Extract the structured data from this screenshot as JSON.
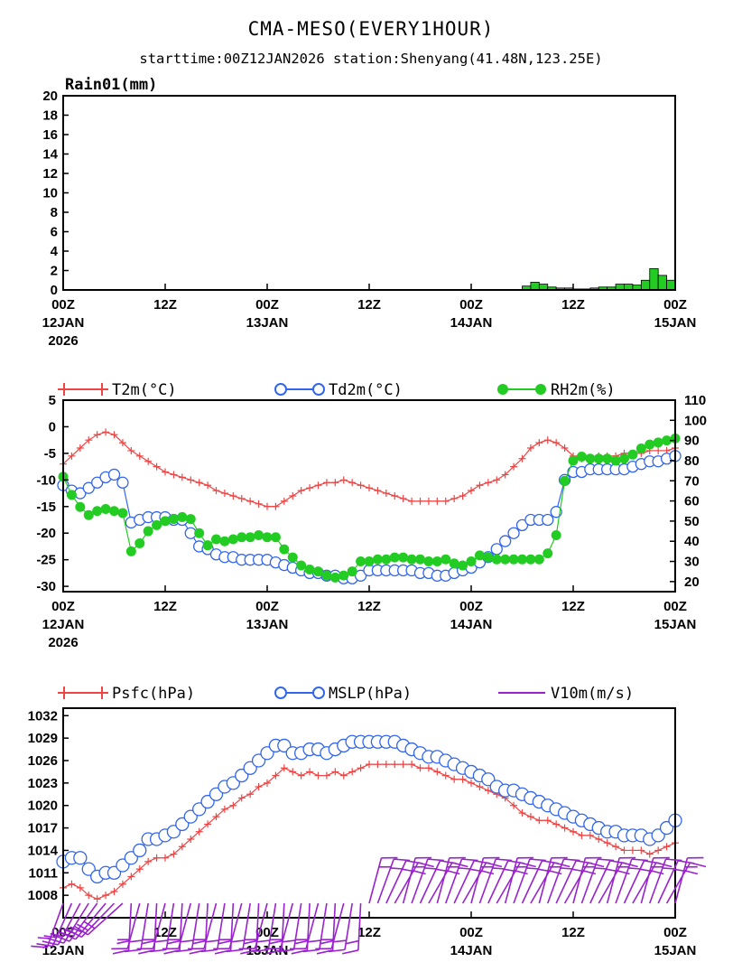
{
  "header": {
    "title": "CMA-MESO(EVERY1HOUR)",
    "subtitle": "starttime:00Z12JAN2026    station:Shenyang(41.48N,123.25E)"
  },
  "colors": {
    "rain": "#22cc22",
    "t2m": "#ee4444",
    "td2m": "#3366ee",
    "rh2m": "#22cc22",
    "psfc": "#ee4444",
    "mslp": "#3366ee",
    "wind": "#9922cc"
  },
  "time_axis": {
    "ticks": [
      {
        "hour": 0,
        "label": "00Z",
        "date": "12JAN",
        "year": "2026"
      },
      {
        "hour": 12,
        "label": "12Z",
        "date": "",
        "year": ""
      },
      {
        "hour": 24,
        "label": "00Z",
        "date": "13JAN",
        "year": ""
      },
      {
        "hour": 36,
        "label": "12Z",
        "date": "",
        "year": ""
      },
      {
        "hour": 48,
        "label": "00Z",
        "date": "14JAN",
        "year": ""
      },
      {
        "hour": 60,
        "label": "12Z",
        "date": "",
        "year": ""
      },
      {
        "hour": 72,
        "label": "00Z",
        "date": "15JAN",
        "year": ""
      }
    ],
    "range": [
      0,
      72
    ]
  },
  "chart_data": [
    {
      "type": "bar",
      "panel": "rain",
      "title": "Rain01(mm)",
      "ylim": [
        0,
        20
      ],
      "yticks": [
        0,
        2,
        4,
        6,
        8,
        10,
        12,
        14,
        16,
        18,
        20
      ],
      "x": [
        55,
        56,
        57,
        58,
        59,
        60,
        61,
        62,
        63,
        64,
        65,
        66,
        67,
        68,
        69,
        70,
        71,
        72
      ],
      "values": [
        0.4,
        0.8,
        0.6,
        0.3,
        0.2,
        0.2,
        0.1,
        0.1,
        0.2,
        0.3,
        0.3,
        0.6,
        0.6,
        0.5,
        1.0,
        2.2,
        1.5,
        1.0
      ]
    },
    {
      "type": "line",
      "panel": "temperature",
      "ylim_left": [
        -31,
        5
      ],
      "yticks_left": [
        5,
        0,
        -5,
        -10,
        -15,
        -20,
        -25,
        -30
      ],
      "ylim_right": [
        15,
        110
      ],
      "yticks_right": [
        110,
        100,
        90,
        80,
        70,
        60,
        50,
        40,
        30,
        20
      ],
      "x": [
        0,
        1,
        2,
        3,
        4,
        5,
        6,
        7,
        8,
        9,
        10,
        11,
        12,
        13,
        14,
        15,
        16,
        17,
        18,
        19,
        20,
        21,
        22,
        23,
        24,
        25,
        26,
        27,
        28,
        29,
        30,
        31,
        32,
        33,
        34,
        35,
        36,
        37,
        38,
        39,
        40,
        41,
        42,
        43,
        44,
        45,
        46,
        47,
        48,
        49,
        50,
        51,
        52,
        53,
        54,
        55,
        56,
        57,
        58,
        59,
        60,
        61,
        62,
        63,
        64,
        65,
        66,
        67,
        68,
        69,
        70,
        71,
        72
      ],
      "series": [
        {
          "name": "T2m(°C)",
          "axis": "left",
          "marker": "plus",
          "values": [
            -7,
            -5.5,
            -4,
            -2.5,
            -1.5,
            -1,
            -1.5,
            -3,
            -4.5,
            -5.5,
            -6.5,
            -7.5,
            -8.5,
            -9,
            -9.5,
            -10,
            -10.5,
            -11,
            -12,
            -12.5,
            -13,
            -13.5,
            -14,
            -14.5,
            -15,
            -15,
            -14,
            -13,
            -12,
            -11.5,
            -11,
            -10.5,
            -10.5,
            -10,
            -10.5,
            -11,
            -11.5,
            -12,
            -12.5,
            -13,
            -13.5,
            -14,
            -14,
            -14,
            -14,
            -14,
            -13.5,
            -13,
            -12,
            -11,
            -10.5,
            -10,
            -9,
            -7.5,
            -6,
            -4,
            -3,
            -2.5,
            -3,
            -4,
            -5.5,
            -6,
            -6,
            -5.5,
            -5.5,
            -5.5,
            -5,
            -5,
            -5,
            -4.5,
            -4.5,
            -4.5,
            -4
          ]
        },
        {
          "name": "Td2m(°C)",
          "axis": "left",
          "marker": "circle",
          "values": [
            -11,
            -12,
            -12.5,
            -11.5,
            -10.5,
            -9.5,
            -9,
            -10.5,
            -18,
            -17.5,
            -17,
            -17,
            -17,
            -17.5,
            -17.5,
            -20,
            -22.5,
            -23,
            -24,
            -24.5,
            -24.5,
            -25,
            -25,
            -25,
            -25,
            -25.5,
            -26,
            -26.5,
            -27,
            -27.5,
            -27.5,
            -28,
            -28,
            -28.5,
            -28.5,
            -28,
            -27,
            -27,
            -27,
            -27,
            -27,
            -27,
            -27.5,
            -27.5,
            -28,
            -28,
            -27.5,
            -27,
            -26.5,
            -25.5,
            -24.5,
            -23,
            -21.5,
            -20,
            -18.5,
            -17.5,
            -17.5,
            -17.5,
            -16,
            -10,
            -8.5,
            -8.5,
            -8,
            -8,
            -8,
            -8,
            -8,
            -7.5,
            -7,
            -6.5,
            -6.5,
            -6,
            -5.5
          ]
        },
        {
          "name": "RH2m(%)",
          "axis": "right",
          "marker": "dot",
          "values": [
            72,
            63,
            57,
            53,
            55,
            56,
            55,
            54,
            35,
            39,
            45,
            48,
            50,
            51,
            52,
            51,
            44,
            38,
            41,
            40,
            41,
            42,
            42,
            43,
            42,
            42,
            36,
            32,
            28,
            26,
            25,
            23,
            22,
            23,
            25,
            30,
            30,
            31,
            31,
            32,
            32,
            31,
            31,
            30,
            30,
            31,
            29,
            28,
            30,
            33,
            32,
            31,
            31,
            31,
            31,
            31,
            31,
            34,
            43,
            70,
            80,
            82,
            81,
            81,
            81,
            80,
            81,
            83,
            86,
            88,
            89,
            90,
            91
          ]
        }
      ]
    },
    {
      "type": "line",
      "panel": "pressure",
      "ylim": [
        1005,
        1033
      ],
      "yticks": [
        1032,
        1029,
        1026,
        1023,
        1020,
        1017,
        1014,
        1011,
        1008
      ],
      "x": [
        0,
        1,
        2,
        3,
        4,
        5,
        6,
        7,
        8,
        9,
        10,
        11,
        12,
        13,
        14,
        15,
        16,
        17,
        18,
        19,
        20,
        21,
        22,
        23,
        24,
        25,
        26,
        27,
        28,
        29,
        30,
        31,
        32,
        33,
        34,
        35,
        36,
        37,
        38,
        39,
        40,
        41,
        42,
        43,
        44,
        45,
        46,
        47,
        48,
        49,
        50,
        51,
        52,
        53,
        54,
        55,
        56,
        57,
        58,
        59,
        60,
        61,
        62,
        63,
        64,
        65,
        66,
        67,
        68,
        69,
        70,
        71,
        72
      ],
      "series": [
        {
          "name": "Psfc(hPa)",
          "marker": "plus",
          "values": [
            1009,
            1009.5,
            1009,
            1008,
            1007.5,
            1008,
            1008.5,
            1009.5,
            1010.5,
            1011.5,
            1012.5,
            1013,
            1013,
            1013.5,
            1014.5,
            1015.5,
            1016.5,
            1017.5,
            1018.5,
            1019.5,
            1020,
            1021,
            1021.5,
            1022.5,
            1023,
            1024,
            1025,
            1024.5,
            1024,
            1024.5,
            1024,
            1024,
            1024.5,
            1024,
            1024.5,
            1025,
            1025.5,
            1025.5,
            1025.5,
            1025.5,
            1025.5,
            1025.5,
            1025,
            1025,
            1024.5,
            1024,
            1023.5,
            1023.5,
            1023,
            1022.5,
            1022,
            1021.5,
            1021,
            1020,
            1019,
            1018.5,
            1018,
            1018,
            1017.5,
            1017,
            1016.5,
            1016,
            1016,
            1015.5,
            1015,
            1014.5,
            1014,
            1014,
            1014,
            1013.5,
            1014,
            1014.5,
            1015
          ]
        },
        {
          "name": "MSLP(hPa)",
          "marker": "circle",
          "values": [
            1012.5,
            1013,
            1013,
            1011.5,
            1010.5,
            1011,
            1011,
            1012,
            1013,
            1014,
            1015.5,
            1015.5,
            1016,
            1016.5,
            1017.5,
            1018.5,
            1019.5,
            1020.5,
            1021.5,
            1022.5,
            1023,
            1024,
            1025,
            1026,
            1027,
            1028,
            1028,
            1027,
            1027,
            1027.5,
            1027.5,
            1027,
            1027.5,
            1028,
            1028.5,
            1028.5,
            1028.5,
            1028.5,
            1028.5,
            1028.5,
            1028,
            1027.5,
            1027,
            1026.5,
            1026.5,
            1026,
            1025.5,
            1025,
            1024.5,
            1024,
            1023.5,
            1022.5,
            1022,
            1022,
            1021.5,
            1021,
            1020.5,
            1020,
            1019.5,
            1019,
            1018.5,
            1018,
            1017.5,
            1017,
            1016.5,
            1016.5,
            1016,
            1016,
            1016,
            1015.5,
            1016,
            1017,
            1018
          ]
        },
        {
          "name": "V10m(m/s)",
          "marker": "barb"
        }
      ]
    }
  ]
}
